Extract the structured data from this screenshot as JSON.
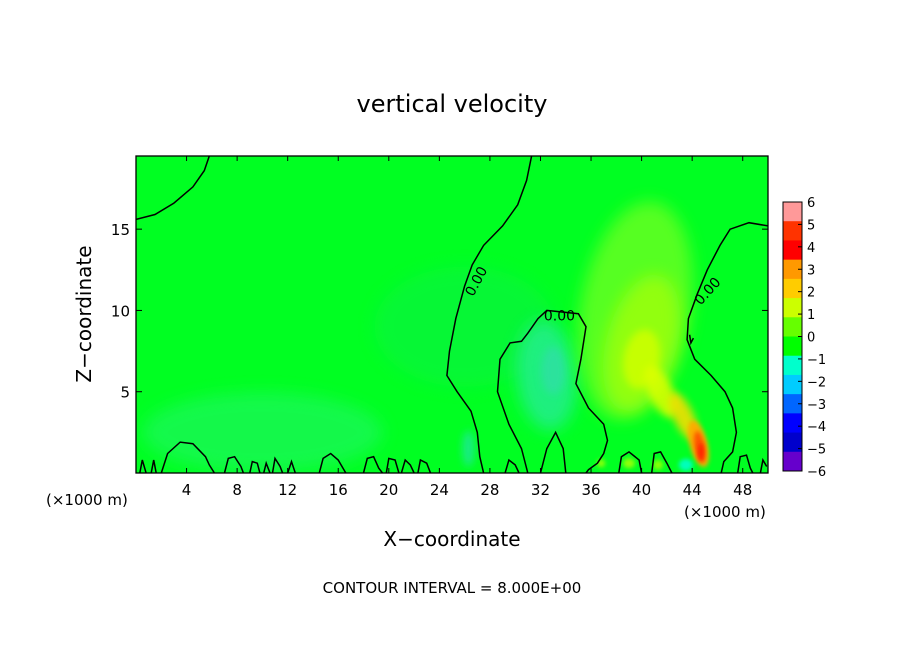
{
  "chart_data": {
    "type": "heatmap",
    "title": "vertical velocity",
    "xlabel": "X−coordinate",
    "ylabel": "Z−coordinate",
    "x_unit": "(×1000 m)",
    "footer": "CONTOUR INTERVAL = 8.000E+00",
    "xlim": [
      0,
      50
    ],
    "ylim": [
      0,
      19.5
    ],
    "xticks": [
      4,
      8,
      12,
      16,
      20,
      24,
      28,
      32,
      36,
      40,
      44,
      48
    ],
    "yticks": [
      5,
      10,
      15
    ],
    "contour_labels": [
      "0.00",
      "0.00",
      "0.00"
    ],
    "colorbar": {
      "levels": [
        6,
        5,
        4,
        3,
        2,
        1,
        0,
        -1,
        -2,
        -3,
        -4,
        -5,
        -6
      ],
      "tick_labels": [
        "6",
        "5",
        "4",
        "3",
        "2",
        "1",
        "0",
        "−1",
        "−2",
        "−3",
        "−4",
        "−5",
        "−6"
      ],
      "colors": [
        "#ff9999",
        "#ff3300",
        "#ff0000",
        "#ff9900",
        "#ffcc00",
        "#ccff00",
        "#66ff00",
        "#00ff00",
        "#00ffcc",
        "#00ccff",
        "#0066ff",
        "#0000ff",
        "#0000cc",
        "#6600cc"
      ]
    },
    "field_features": [
      {
        "name": "updraft-core",
        "x": 44.6,
        "z": 1.6,
        "value": 4.5
      },
      {
        "name": "updraft-column",
        "x": 40,
        "z": 7,
        "value": 1.5
      },
      {
        "name": "weak-downdraft",
        "x": 32.5,
        "z": 6,
        "value": -1.5
      },
      {
        "name": "surface-downdraft",
        "x": 43.5,
        "z": 0.5,
        "value": -1.5
      }
    ]
  }
}
